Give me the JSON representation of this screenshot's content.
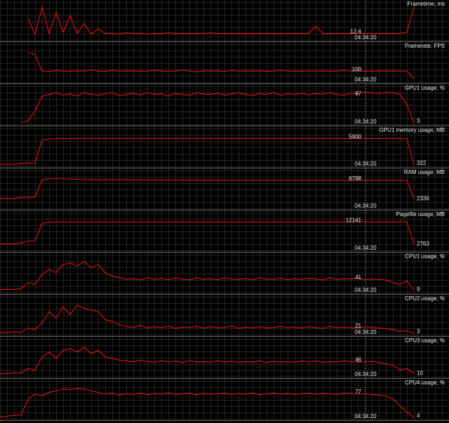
{
  "chart_data": [
    {
      "type": "line",
      "title": "Frametime, ms",
      "color": "#ff1010",
      "grid": true,
      "ylim": [
        0,
        60
      ],
      "cursor_value": 12.4,
      "cursor_time": "04:34:20",
      "values": [
        null,
        null,
        null,
        null,
        40,
        10,
        60,
        12,
        50,
        14,
        45,
        12,
        30,
        11,
        20,
        12,
        12,
        11,
        13,
        12,
        12,
        11,
        12,
        12,
        13,
        12,
        12,
        12,
        12,
        12,
        13,
        12,
        12,
        12,
        12,
        12,
        12,
        12,
        12,
        12,
        12,
        12,
        12,
        12,
        12,
        25,
        12,
        12,
        12,
        12,
        12,
        12,
        12,
        12,
        12,
        12,
        12,
        12,
        14,
        60
      ]
    },
    {
      "type": "line",
      "title": "Framerate, FPS",
      "color": "#ff1010",
      "grid": true,
      "ylim": [
        0,
        300
      ],
      "cursor_value": 100,
      "cursor_time": "04:34:20",
      "values": [
        null,
        null,
        null,
        null,
        270,
        250,
        100,
        95,
        105,
        100,
        98,
        102,
        100,
        110,
        100,
        98,
        105,
        100,
        100,
        102,
        98,
        100,
        105,
        100,
        98,
        100,
        110,
        100,
        95,
        100,
        102,
        100,
        98,
        105,
        100,
        100,
        100,
        102,
        98,
        100,
        105,
        100,
        98,
        100,
        100,
        100,
        102,
        98,
        100,
        105,
        100,
        100,
        100,
        98,
        102,
        100,
        100,
        100,
        100,
        30
      ]
    },
    {
      "type": "line",
      "title": "GPU1 usage, %",
      "color": "#ff1010",
      "grid": true,
      "ylim": [
        0,
        100
      ],
      "cursor_value": 97,
      "cursor_time": "04:34:20",
      "last_value": 3,
      "values": [
        null,
        null,
        null,
        5,
        10,
        40,
        85,
        90,
        95,
        88,
        92,
        85,
        95,
        90,
        88,
        92,
        95,
        87,
        90,
        93,
        88,
        95,
        90,
        92,
        85,
        93,
        90,
        88,
        95,
        91,
        90,
        94,
        88,
        92,
        95,
        90,
        87,
        93,
        90,
        95,
        88,
        92,
        90,
        94,
        89,
        93,
        91,
        95,
        90,
        88,
        94,
        92,
        97,
        95,
        93,
        96,
        95,
        90,
        60,
        3
      ]
    },
    {
      "type": "line",
      "title": "GPU1 memory usage, MB",
      "color": "#ff1010",
      "grid": true,
      "ylim": [
        0,
        7000
      ],
      "cursor_value": 5900,
      "cursor_time": "04:34:20",
      "last_value": 322,
      "values": [
        400,
        400,
        400,
        600,
        700,
        700,
        5600,
        5800,
        5850,
        5880,
        5890,
        5900,
        5900,
        5900,
        5900,
        5900,
        5900,
        5900,
        5900,
        5900,
        5900,
        5900,
        5900,
        5900,
        5900,
        5900,
        5900,
        5900,
        5900,
        5900,
        5900,
        5900,
        5900,
        5900,
        5900,
        5900,
        5900,
        5900,
        5900,
        5900,
        5900,
        5900,
        5900,
        5900,
        5900,
        5900,
        5900,
        5900,
        5900,
        5900,
        5900,
        5900,
        5900,
        5900,
        5900,
        5900,
        5900,
        5900,
        5900,
        322
      ]
    },
    {
      "type": "line",
      "title": "RAM usage, MB",
      "color": "#ff1010",
      "grid": true,
      "ylim": [
        0,
        8000
      ],
      "cursor_value": 6788,
      "cursor_time": "04:34:20",
      "last_value": 2336,
      "values": [
        2400,
        2400,
        2400,
        2600,
        2700,
        2800,
        6900,
        7200,
        7200,
        7150,
        7100,
        7050,
        7000,
        6980,
        6960,
        6950,
        6940,
        6930,
        6920,
        6910,
        6900,
        6890,
        6880,
        6870,
        6860,
        6850,
        6840,
        6830,
        6820,
        6815,
        6810,
        6805,
        6800,
        6800,
        6798,
        6796,
        6795,
        6794,
        6793,
        6792,
        6792,
        6791,
        6791,
        6790,
        6790,
        6790,
        6789,
        6789,
        6789,
        6788,
        6788,
        6788,
        6788,
        6788,
        6788,
        6788,
        6790,
        6790,
        6800,
        2336
      ]
    },
    {
      "type": "line",
      "title": "Pagefile usage, MB",
      "color": "#ff1010",
      "grid": true,
      "ylim": [
        0,
        14000
      ],
      "cursor_value": 12141,
      "cursor_time": "04:34:20",
      "last_value": 2763,
      "values": [
        2800,
        2800,
        2800,
        3200,
        4000,
        4100,
        11500,
        12000,
        12100,
        12100,
        12100,
        12100,
        12100,
        12100,
        12100,
        12100,
        12100,
        12100,
        12100,
        12100,
        12100,
        12100,
        12100,
        12100,
        12100,
        12100,
        12100,
        12100,
        12100,
        12100,
        12120,
        12120,
        12120,
        12120,
        12120,
        12130,
        12130,
        12130,
        12130,
        12130,
        12135,
        12135,
        12135,
        12135,
        12135,
        12140,
        12140,
        12140,
        12140,
        12140,
        12141,
        12141,
        12141,
        12141,
        12141,
        12141,
        12141,
        12141,
        12141,
        2763
      ]
    },
    {
      "type": "line",
      "title": "CPU1 usage, %",
      "color": "#ff1010",
      "grid": true,
      "ylim": [
        0,
        100
      ],
      "cursor_value": 41,
      "cursor_time": "04:34:20",
      "last_value": 9,
      "values": [
        8,
        10,
        9,
        12,
        30,
        25,
        55,
        70,
        60,
        85,
        90,
        80,
        95,
        75,
        85,
        60,
        50,
        45,
        40,
        42,
        38,
        45,
        40,
        43,
        39,
        44,
        41,
        38,
        45,
        40,
        42,
        39,
        44,
        41,
        40,
        43,
        38,
        45,
        41,
        40,
        44,
        39,
        42,
        40,
        43,
        41,
        38,
        45,
        40,
        42,
        41,
        44,
        39,
        41,
        40,
        38,
        30,
        25,
        35,
        9
      ]
    },
    {
      "type": "line",
      "title": "CPU2 usage, %",
      "color": "#ff1010",
      "grid": true,
      "ylim": [
        0,
        100
      ],
      "cursor_value": 21,
      "cursor_time": "04:34:20",
      "last_value": 3,
      "values": [
        5,
        6,
        8,
        7,
        20,
        15,
        35,
        70,
        50,
        85,
        60,
        90,
        80,
        75,
        70,
        45,
        40,
        30,
        25,
        22,
        28,
        20,
        24,
        21,
        26,
        19,
        23,
        22,
        25,
        20,
        24,
        21,
        22,
        26,
        19,
        23,
        21,
        24,
        20,
        22,
        25,
        21,
        23,
        20,
        24,
        22,
        19,
        25,
        21,
        23,
        21,
        20,
        24,
        22,
        20,
        18,
        15,
        10,
        12,
        3
      ]
    },
    {
      "type": "line",
      "title": "CPU3 usage, %",
      "color": "#ff1010",
      "grid": true,
      "ylim": [
        0,
        100
      ],
      "cursor_value": 46,
      "cursor_time": "04:34:20",
      "last_value": 10,
      "values": [
        8,
        10,
        12,
        11,
        25,
        20,
        60,
        75,
        55,
        80,
        85,
        75,
        90,
        70,
        80,
        60,
        55,
        50,
        48,
        45,
        50,
        46,
        44,
        48,
        45,
        47,
        43,
        49,
        45,
        46,
        44,
        48,
        45,
        47,
        44,
        46,
        45,
        48,
        43,
        47,
        45,
        46,
        44,
        48,
        45,
        47,
        44,
        46,
        45,
        48,
        46,
        44,
        45,
        47,
        43,
        40,
        35,
        20,
        25,
        10
      ]
    },
    {
      "type": "line",
      "title": "CPU4 usage, %",
      "color": "#ff1010",
      "grid": true,
      "ylim": [
        0,
        100
      ],
      "cursor_value": 77,
      "cursor_time": "04:34:20",
      "last_value": 4,
      "values": [
        5,
        8,
        10,
        12,
        60,
        75,
        70,
        80,
        85,
        90,
        88,
        92,
        90,
        85,
        80,
        75,
        78,
        72,
        76,
        74,
        78,
        73,
        77,
        75,
        79,
        74,
        76,
        78,
        73,
        77,
        75,
        76,
        78,
        74,
        77,
        75,
        79,
        73,
        76,
        78,
        75,
        77,
        74,
        76,
        78,
        75,
        77,
        76,
        74,
        78,
        77,
        75,
        76,
        74,
        72,
        70,
        60,
        40,
        20,
        4
      ]
    }
  ]
}
